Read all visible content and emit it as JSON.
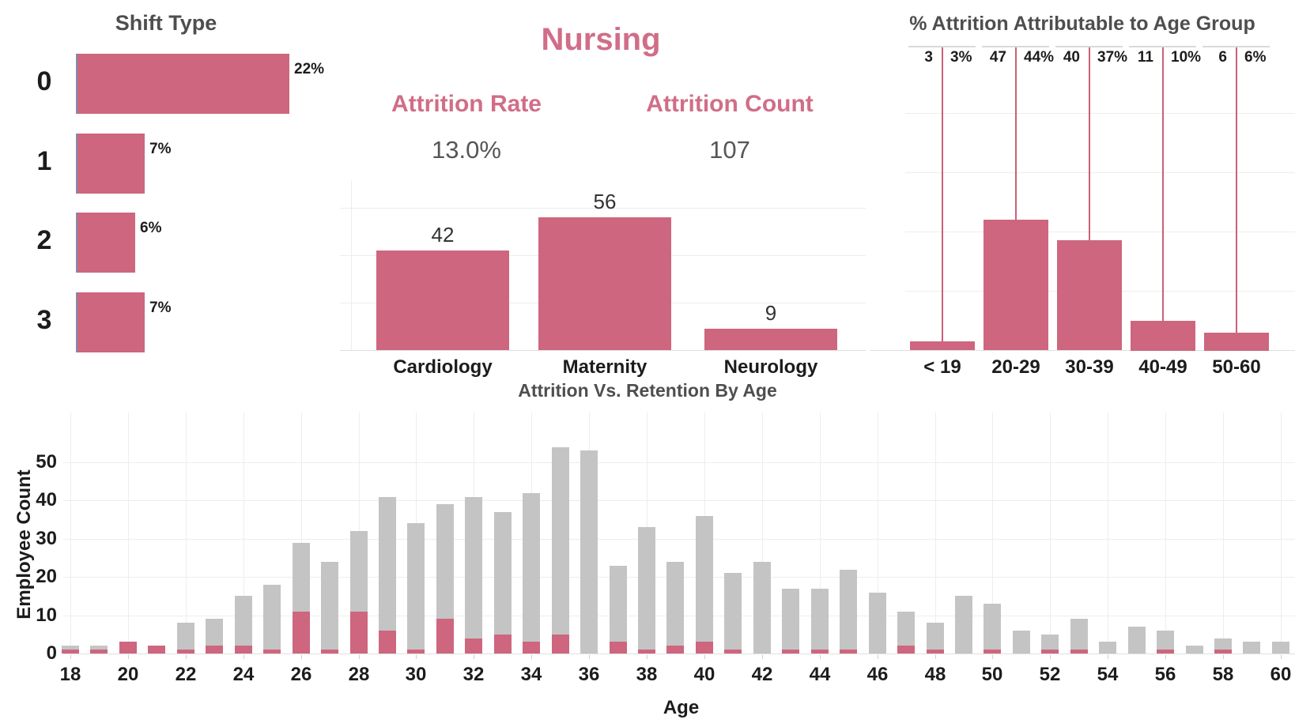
{
  "colors": {
    "bar_pink": "#cd667e",
    "text_pink": "#d16d88",
    "reference_line_pink": "#c96179",
    "bar_gray": "#c4c4c4",
    "title_gray": "#4e4e4e",
    "label_dark": "#1c1c1c",
    "value_dark": "#333333",
    "kpi_value_gray": "#565656",
    "gridline": "#ededed",
    "axis_line": "#e0e0e0",
    "top_rule_gray": "#d9d9d9",
    "shift_bar_left_edge": "#7b8db0"
  },
  "chart_data": [
    {
      "id": "shift-type",
      "type": "bar",
      "orientation": "horizontal",
      "title": "Shift Type",
      "categories": [
        "0",
        "1",
        "2",
        "3"
      ],
      "values": [
        22,
        7,
        6,
        7
      ],
      "value_labels": [
        "22%",
        "7%",
        "6%",
        "7%"
      ],
      "xlim": [
        0,
        22
      ],
      "grid": false
    },
    {
      "id": "nursing-department",
      "type": "bar",
      "title": "Nursing",
      "kpis": [
        {
          "label": "Attrition Rate",
          "value": "13.0%"
        },
        {
          "label": "Attrition Count",
          "value": "107"
        }
      ],
      "categories": [
        "Cardiology",
        "Maternity",
        "Neurology"
      ],
      "values": [
        42,
        56,
        9
      ],
      "value_labels": [
        "42",
        "56",
        "9"
      ],
      "ylim": [
        0,
        60
      ],
      "gridline_values": [
        20,
        40,
        60
      ],
      "grid": true
    },
    {
      "id": "attrition-by-age-group",
      "type": "bar",
      "title": "% Attrition Attributable to Age Group",
      "categories": [
        "< 19",
        "20-29",
        "30-39",
        "40-49",
        "50-60"
      ],
      "counts": [
        3,
        47,
        40,
        11,
        6
      ],
      "count_labels": [
        "3",
        "47",
        "40",
        "11",
        "6"
      ],
      "values_pct": [
        3,
        44,
        37,
        10,
        6
      ],
      "pct_labels": [
        "3%",
        "44%",
        "37%",
        "10%",
        "6%"
      ],
      "ylim": [
        0,
        100
      ],
      "gridline_values": [
        20,
        40,
        60,
        80
      ],
      "grid": true,
      "reference_lines": true
    },
    {
      "id": "attrition-vs-retention-by-age",
      "type": "stacked-bar",
      "title": "Attrition Vs. Retention By Age",
      "xlabel": "Age",
      "ylabel": "Employee Count",
      "x": [
        18,
        19,
        20,
        21,
        22,
        23,
        24,
        25,
        26,
        27,
        28,
        29,
        30,
        31,
        32,
        33,
        34,
        35,
        36,
        37,
        38,
        39,
        40,
        41,
        42,
        43,
        44,
        45,
        46,
        47,
        48,
        49,
        50,
        51,
        52,
        53,
        54,
        55,
        56,
        57,
        58,
        59,
        60
      ],
      "series": [
        {
          "name": "Attrition",
          "color": "#cd667e",
          "values": [
            1,
            1,
            3,
            2,
            1,
            2,
            2,
            1,
            11,
            1,
            11,
            6,
            1,
            9,
            4,
            5,
            3,
            5,
            0,
            3,
            1,
            2,
            3,
            1,
            0,
            1,
            1,
            1,
            0,
            2,
            1,
            0,
            1,
            0,
            1,
            1,
            0,
            0,
            1,
            0,
            1,
            0,
            0
          ]
        },
        {
          "name": "Retention",
          "color": "#c4c4c4",
          "values": [
            1,
            1,
            0,
            0,
            7,
            7,
            13,
            17,
            18,
            23,
            21,
            35,
            33,
            30,
            37,
            32,
            39,
            49,
            53,
            20,
            32,
            22,
            33,
            20,
            24,
            16,
            16,
            21,
            16,
            9,
            7,
            15,
            12,
            6,
            4,
            8,
            3,
            7,
            5,
            2,
            3,
            3,
            3
          ]
        }
      ],
      "yticks": [
        0,
        10,
        20,
        30,
        40,
        50
      ],
      "xticks": [
        18,
        20,
        22,
        24,
        26,
        28,
        30,
        32,
        34,
        36,
        38,
        40,
        42,
        44,
        46,
        48,
        50,
        52,
        54,
        56,
        58,
        60
      ],
      "ylim": [
        0,
        57
      ],
      "grid": true
    }
  ]
}
